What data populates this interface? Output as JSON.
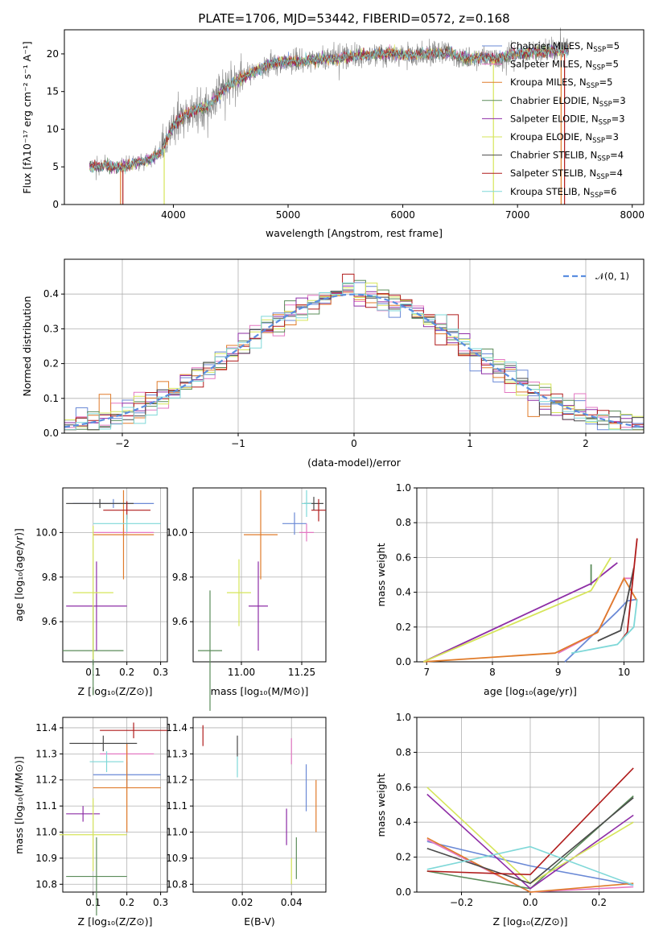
{
  "chart_data": [
    {
      "type": "line",
      "title": "PLATE=1706, MJD=53442, FIBERID=0572, z=0.168",
      "xlabel": "wavelength [Angstrom, rest frame]",
      "ylabel": "Flux [fλ10⁻¹⁷ erg cm⁻² s⁻¹ A⁻¹]",
      "xlim": [
        3050,
        8100
      ],
      "ylim": [
        0,
        23.2
      ],
      "xticks": [
        4000,
        5000,
        6000,
        7000,
        8000
      ],
      "yticks": [
        0,
        5,
        10,
        15,
        20
      ],
      "data_x_range": [
        3270,
        7450
      ],
      "continuum": {
        "x": [
          3270,
          3400,
          3550,
          3700,
          3800,
          3900,
          4000,
          4100,
          4200,
          4300,
          4400,
          4500,
          4600,
          4700,
          4800,
          4900,
          5000,
          5100,
          5200,
          5300,
          5400,
          5500,
          5600,
          5700,
          5800,
          5900,
          6000,
          6100,
          6200,
          6300,
          6400,
          6500,
          6600,
          6700,
          6800,
          6900,
          7000,
          7100,
          7200,
          7300,
          7450
        ],
        "y": [
          5.0,
          5.1,
          5.0,
          5.6,
          6.0,
          7.2,
          10.5,
          11.8,
          12.6,
          13.0,
          14.6,
          16.0,
          16.8,
          17.6,
          18.4,
          18.8,
          19.0,
          19.0,
          19.2,
          19.3,
          19.3,
          19.6,
          19.8,
          19.8,
          20.0,
          20.2,
          19.8,
          19.8,
          20.0,
          20.1,
          20.2,
          19.6,
          19.4,
          19.6,
          19.4,
          19.7,
          20.0,
          20.2,
          20.2,
          20.4,
          20.5
        ]
      },
      "series": [
        {
          "name": "Chabrier MILES, N_SSP=5",
          "color": "#6a89d6"
        },
        {
          "name": "Salpeter MILES, N_SSP=5",
          "color": "#e377c2"
        },
        {
          "name": "Kroupa MILES, N_SSP=5",
          "color": "#e07b2a"
        },
        {
          "name": "Chabrier ELODIE, N_SSP=3",
          "color": "#5b8c5a"
        },
        {
          "name": "Salpeter ELODIE, N_SSP=3",
          "color": "#8e2ea6"
        },
        {
          "name": "Kroupa ELODIE, N_SSP=3",
          "color": "#d6e55a"
        },
        {
          "name": "Chabrier STELIB, N_SSP=4",
          "color": "#4a4a4a"
        },
        {
          "name": "Salpeter STELIB, N_SSP=4",
          "color": "#b01c1c"
        },
        {
          "name": "Kroupa STELIB, N_SSP=6",
          "color": "#7fd8d8"
        }
      ],
      "legend": [
        {
          "pre": "Chabrier MILES, N",
          "sub": "SSP",
          "post": "=5"
        },
        {
          "pre": "Salpeter MILES, N",
          "sub": "SSP",
          "post": "=5"
        },
        {
          "pre": "Kroupa MILES, N",
          "sub": "SSP",
          "post": "=5"
        },
        {
          "pre": "Chabrier ELODIE, N",
          "sub": "SSP",
          "post": "=3"
        },
        {
          "pre": "Salpeter ELODIE, N",
          "sub": "SSP",
          "post": "=3"
        },
        {
          "pre": "Kroupa ELODIE, N",
          "sub": "SSP",
          "post": "=3"
        },
        {
          "pre": "Chabrier STELIB, N",
          "sub": "SSP",
          "post": "=4"
        },
        {
          "pre": "Salpeter STELIB, N",
          "sub": "SSP",
          "post": "=4"
        },
        {
          "pre": "Kroupa STELIB, N",
          "sub": "SSP",
          "post": "=6"
        }
      ],
      "legend_position": "right",
      "model_dropouts": [
        {
          "x": 3540,
          "color": "#e07b2a"
        },
        {
          "x": 3560,
          "color": "#b01c1c"
        },
        {
          "x": 3920,
          "color": "#d6e55a"
        },
        {
          "x": 6790,
          "color": "#d6e55a"
        },
        {
          "x": 7380,
          "color": "#e07b2a"
        },
        {
          "x": 7410,
          "color": "#b01c1c"
        }
      ]
    },
    {
      "type": "bar",
      "xlabel": "(data-model)/error",
      "ylabel": "Normed distribution",
      "xlim": [
        -2.5,
        2.5
      ],
      "ylim": [
        0,
        0.5
      ],
      "xticks": [
        -2,
        -1,
        0,
        1,
        2
      ],
      "yticks": [
        0.0,
        0.1,
        0.2,
        0.3,
        0.4
      ],
      "grid": true,
      "bin_edges": {
        "start": -2.5,
        "step": 0.1
      },
      "gaussian": {
        "name": "N(0,1)",
        "mean": 0,
        "sigma": 1,
        "style": "dashed",
        "color": "#5b8ee0"
      },
      "legend_position": "top-right",
      "series": [
        {
          "name": "Chabrier MILES",
          "color": "#6a89d6",
          "values": [
            0.028,
            0.032,
            0.036,
            0.045,
            0.052,
            0.06,
            0.067,
            0.075,
            0.087,
            0.105,
            0.118,
            0.138,
            0.155,
            0.175,
            0.195,
            0.215,
            0.236,
            0.256,
            0.278,
            0.298,
            0.315,
            0.325,
            0.348,
            0.36,
            0.372,
            0.375,
            0.38,
            0.39,
            0.395,
            0.4,
            0.398,
            0.38,
            0.385,
            0.37,
            0.36,
            0.345,
            0.33,
            0.315,
            0.3,
            0.28,
            0.26,
            0.24,
            0.22,
            0.2,
            0.18,
            0.16,
            0.14,
            0.12,
            0.105,
            0.09,
            0.075,
            0.065,
            0.055,
            0.048,
            0.04,
            0.034,
            0.03,
            0.026,
            0.022,
            0.02
          ],
          "scale_note": "values approximate"
        }
      ]
    }
  ]
}
